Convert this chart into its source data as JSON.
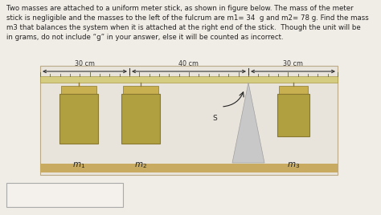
{
  "outer_bg": "#c8c4bc",
  "panel_bg": "#f0ece6",
  "text_color": "#222222",
  "title_text": "Two masses are attached to a uniform meter stick, as shown in figure below. The mass of the meter\nstick is negligible and the masses to the left of the fulcrum are m1= 34  g and m2= 78 g. Find the mass\nm3 that balances the system when it is attached at the right end of the stick.  Though the unit will be\nin grams, do not include “g” in your answer, else it will be counted as incorrect.",
  "ruler_color": "#d4cc80",
  "ruler_border": "#aa9944",
  "tick_color": "#666644",
  "mass_color": "#b0a040",
  "mass_border": "#887830",
  "mass_cap_color": "#c8b050",
  "string_color": "#907830",
  "fulcrum_color_light": "#c8c8c8",
  "fulcrum_color_dark": "#a0a0a0",
  "seg1_label": "30 cm",
  "seg2_label": "40 cm",
  "seg3_label": "30 cm",
  "s_label": "S",
  "base_strip_color": "#c8aa60",
  "answer_box_color": "#f4f0ec",
  "diagram_bg": "#e8e4dc"
}
